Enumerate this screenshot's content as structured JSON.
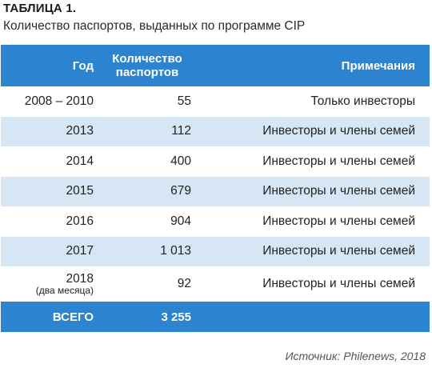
{
  "title": "ТАБЛИЦА 1.",
  "subtitle": "Количество паспортов, выданных по программе CIP",
  "headers": {
    "year": "Год",
    "count": "Количество паспортов",
    "note": "Примечания"
  },
  "rows": [
    {
      "year": "2008 – 2010",
      "year_note": "",
      "count": "55",
      "note": "Только инвесторы"
    },
    {
      "year": "2013",
      "year_note": "",
      "count": "112",
      "note": "Инвесторы и члены семей"
    },
    {
      "year": "2014",
      "year_note": "",
      "count": "400",
      "note": "Инвесторы и члены семей"
    },
    {
      "year": "2015",
      "year_note": "",
      "count": "679",
      "note": "Инвесторы и члены семей"
    },
    {
      "year": "2016",
      "year_note": "",
      "count": "904",
      "note": "Инвесторы и члены семей"
    },
    {
      "year": "2017",
      "year_note": "",
      "count": "1 013",
      "note": "Инвесторы и члены семей"
    },
    {
      "year": "2018",
      "year_note": "(два месяца)",
      "count": "92",
      "note": "Инвесторы и члены семей"
    }
  ],
  "total": {
    "label": "ВСЕГО",
    "count": "3 255",
    "note": ""
  },
  "source": "Источник: Philenews, 2018",
  "colors": {
    "header": "#2c84d0",
    "alt_row": "#d6e6f4"
  }
}
